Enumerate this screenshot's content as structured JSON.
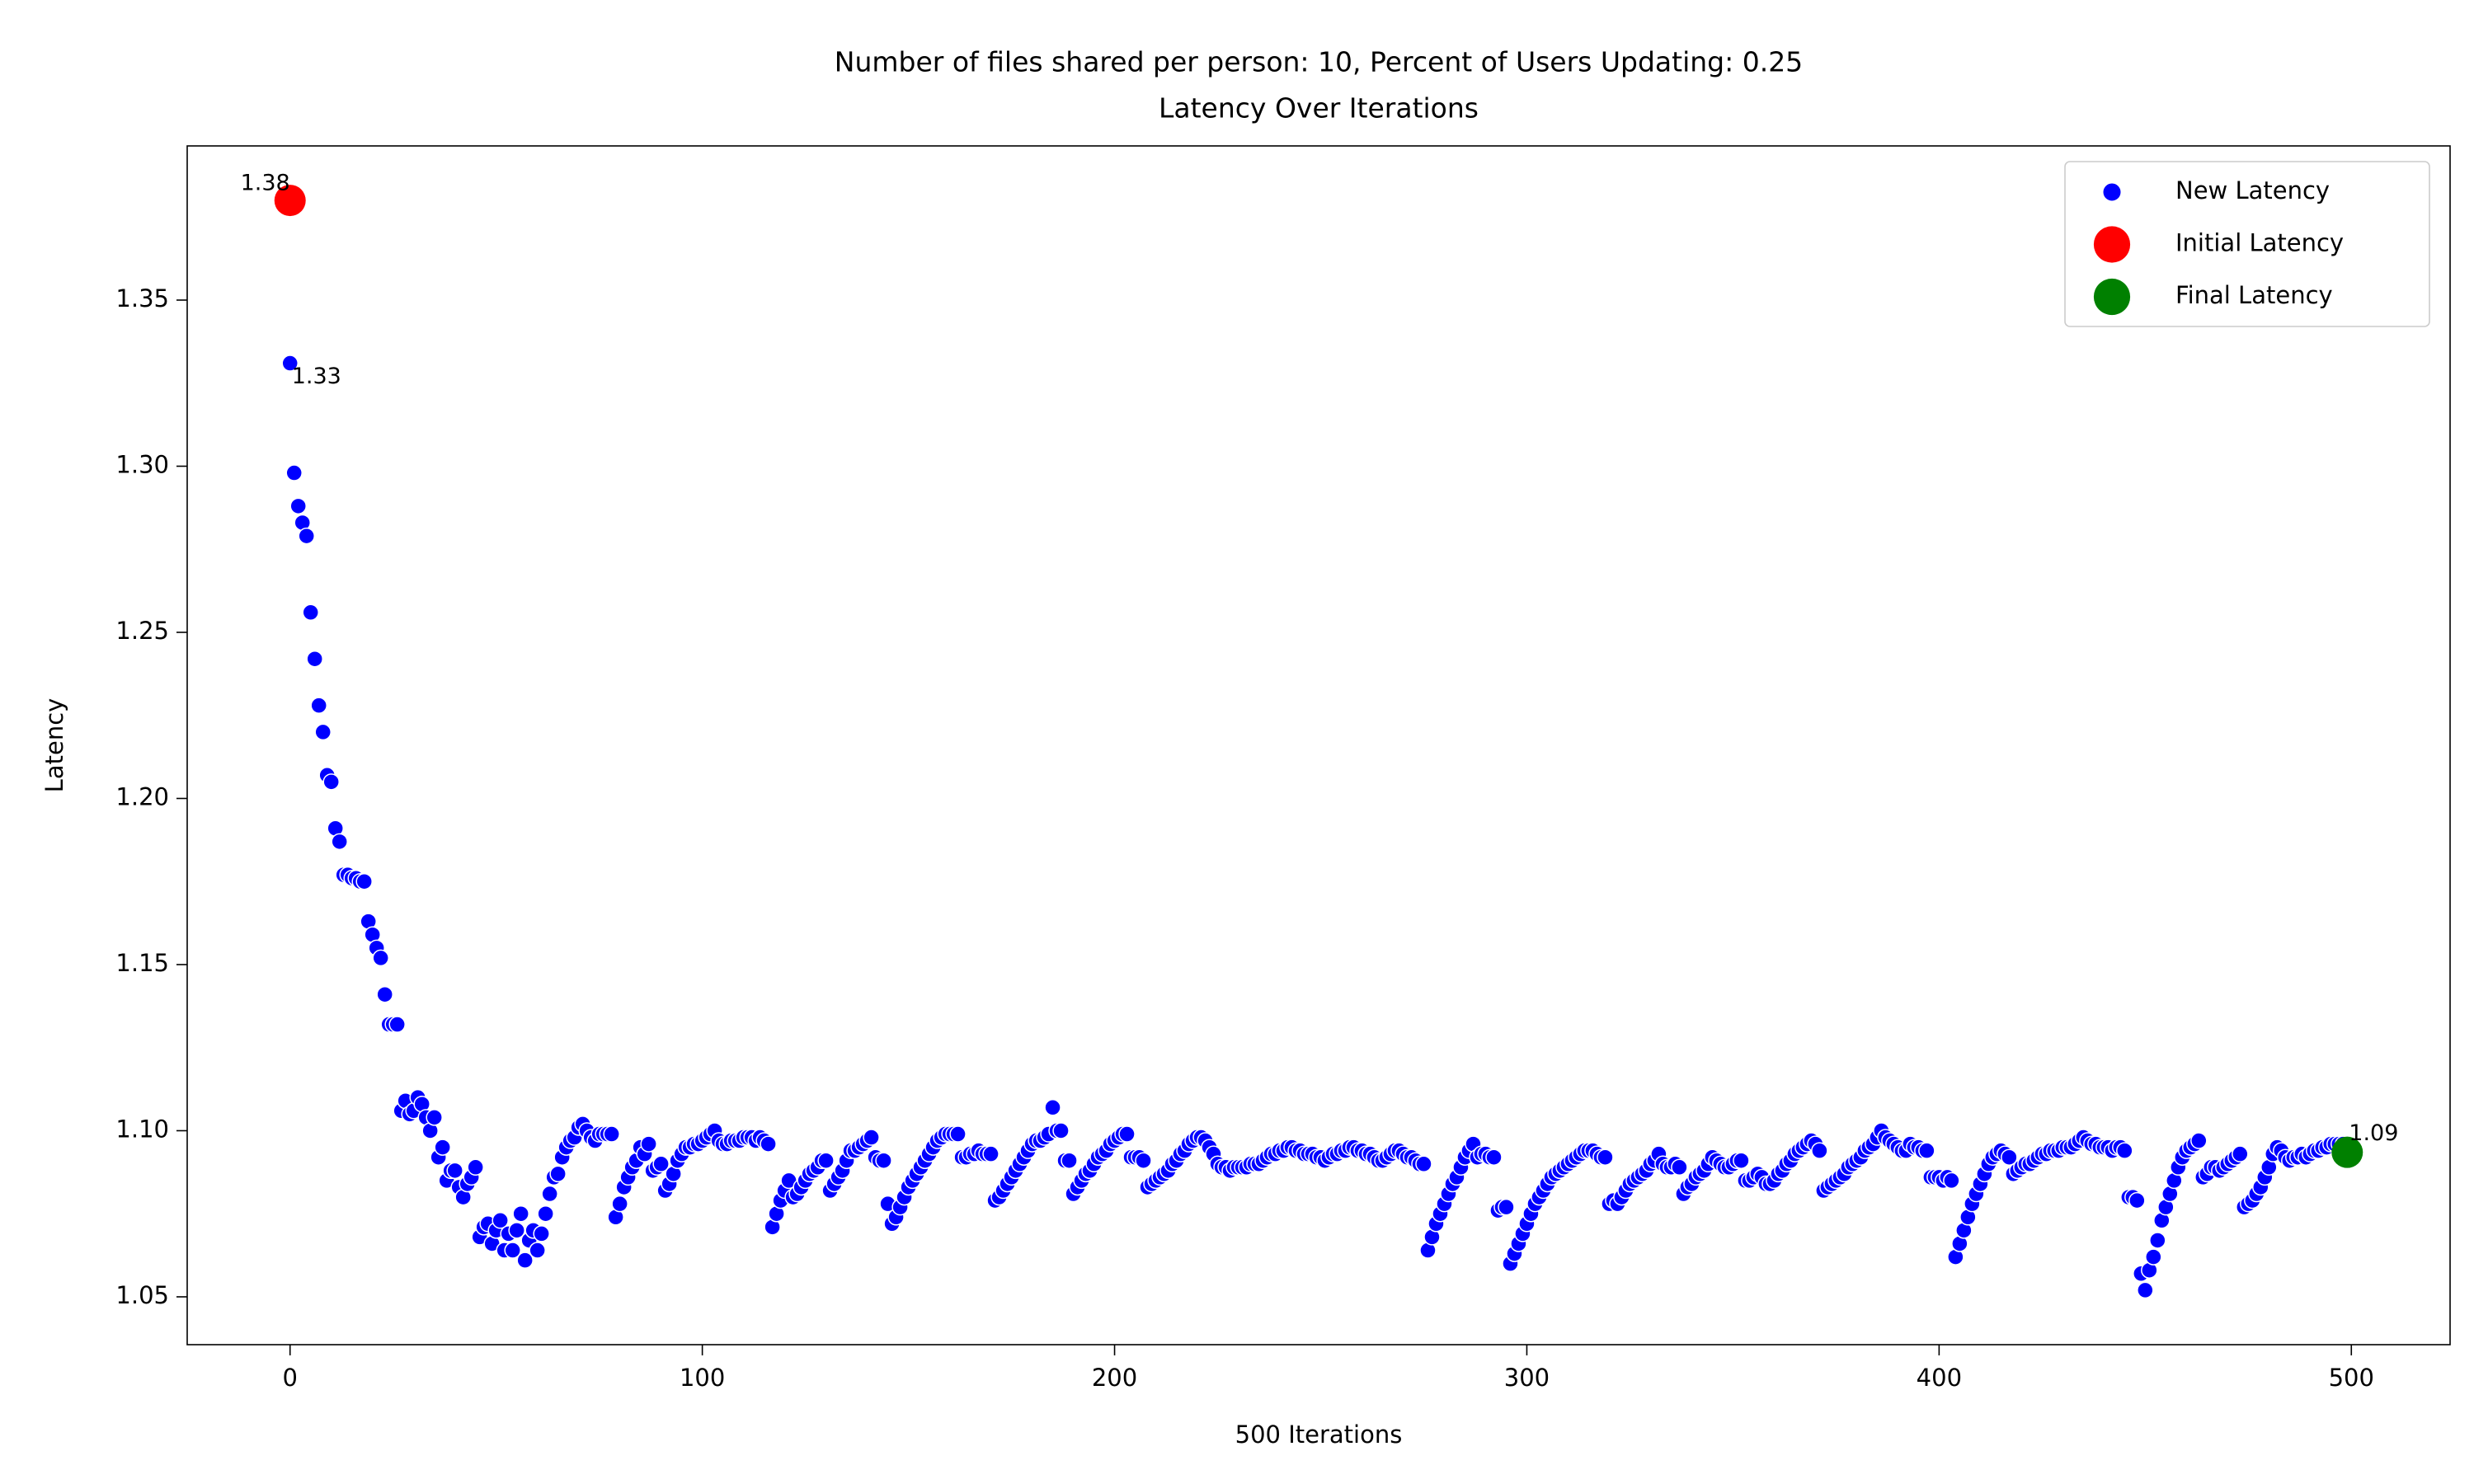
{
  "chart_data": {
    "type": "scatter",
    "title": "Number of files shared per person: 10, Percent of Users Updating: 0.25",
    "subtitle": "Latency Over Iterations",
    "x_label": "500 Iterations",
    "y_label": "Latency",
    "xlim": [
      -24.95,
      523.95
    ],
    "ylim": [
      1.0356,
      1.3964
    ],
    "xticks": [
      0,
      100,
      200,
      300,
      400,
      500
    ],
    "yticks": [
      1.05,
      {
        "value": 1.1,
        "label": "1.10"
      },
      1.15,
      {
        "value": 1.2,
        "label": "1.20"
      },
      1.25,
      {
        "value": 1.3,
        "label": "1.30"
      },
      1.35
    ],
    "grid": false,
    "legend": "upper right",
    "series": [
      {
        "name": "New Latency",
        "color": "blue",
        "x": [
          0,
          1,
          2,
          3,
          4,
          5,
          6,
          7,
          8,
          9,
          10,
          11,
          12,
          13,
          14,
          15,
          16,
          17,
          18,
          19,
          20,
          21,
          22,
          23,
          24,
          25,
          26,
          27,
          28,
          29,
          30,
          31,
          32,
          33,
          34,
          35,
          36,
          37,
          38,
          39,
          40,
          41,
          42,
          43,
          44,
          45,
          46,
          47,
          48,
          49,
          50,
          51,
          52,
          53,
          54,
          55,
          56,
          57,
          58,
          59,
          60,
          61,
          62,
          63,
          64,
          65,
          66,
          67,
          68,
          69,
          70,
          71,
          72,
          73,
          74,
          75,
          76,
          77,
          78,
          79,
          80,
          81,
          82,
          83,
          84,
          85,
          86,
          87,
          88,
          89,
          90,
          91,
          92,
          93,
          94,
          95,
          96,
          97,
          98,
          99,
          100,
          101,
          102,
          103,
          104,
          105,
          106,
          107,
          108,
          109,
          110,
          111,
          112,
          113,
          114,
          115,
          116,
          117,
          118,
          119,
          120,
          121,
          122,
          123,
          124,
          125,
          126,
          127,
          128,
          129,
          130,
          131,
          132,
          133,
          134,
          135,
          136,
          137,
          138,
          139,
          140,
          141,
          142,
          143,
          144,
          145,
          146,
          147,
          148,
          149,
          150,
          151,
          152,
          153,
          154,
          155,
          156,
          157,
          158,
          159,
          160,
          161,
          162,
          163,
          164,
          165,
          166,
          167,
          168,
          169,
          170,
          171,
          172,
          173,
          174,
          175,
          176,
          177,
          178,
          179,
          180,
          181,
          182,
          183,
          184,
          185,
          186,
          187,
          188,
          189,
          190,
          191,
          192,
          193,
          194,
          195,
          196,
          197,
          198,
          199,
          200,
          201,
          202,
          203,
          204,
          205,
          206,
          207,
          208,
          209,
          210,
          211,
          212,
          213,
          214,
          215,
          216,
          217,
          218,
          219,
          220,
          221,
          222,
          223,
          224,
          225,
          226,
          227,
          228,
          229,
          230,
          231,
          232,
          233,
          234,
          235,
          236,
          237,
          238,
          239,
          240,
          241,
          242,
          243,
          244,
          245,
          246,
          247,
          248,
          249,
          250,
          251,
          252,
          253,
          254,
          255,
          256,
          257,
          258,
          259,
          260,
          261,
          262,
          263,
          264,
          265,
          266,
          267,
          268,
          269,
          270,
          271,
          272,
          273,
          274,
          275,
          276,
          277,
          278,
          279,
          280,
          281,
          282,
          283,
          284,
          285,
          286,
          287,
          288,
          289,
          290,
          291,
          292,
          293,
          294,
          295,
          296,
          297,
          298,
          299,
          300,
          301,
          302,
          303,
          304,
          305,
          306,
          307,
          308,
          309,
          310,
          311,
          312,
          313,
          314,
          315,
          316,
          317,
          318,
          319,
          320,
          321,
          322,
          323,
          324,
          325,
          326,
          327,
          328,
          329,
          330,
          331,
          332,
          333,
          334,
          335,
          336,
          337,
          338,
          339,
          340,
          341,
          342,
          343,
          344,
          345,
          346,
          347,
          348,
          349,
          350,
          351,
          352,
          353,
          354,
          355,
          356,
          357,
          358,
          359,
          360,
          361,
          362,
          363,
          364,
          365,
          366,
          367,
          368,
          369,
          370,
          371,
          372,
          373,
          374,
          375,
          376,
          377,
          378,
          379,
          380,
          381,
          382,
          383,
          384,
          385,
          386,
          387,
          388,
          389,
          390,
          391,
          392,
          393,
          394,
          395,
          396,
          397,
          398,
          399,
          400,
          401,
          402,
          403,
          404,
          405,
          406,
          407,
          408,
          409,
          410,
          411,
          412,
          413,
          414,
          415,
          416,
          417,
          418,
          419,
          420,
          421,
          422,
          423,
          424,
          425,
          426,
          427,
          428,
          429,
          430,
          431,
          432,
          433,
          434,
          435,
          436,
          437,
          438,
          439,
          440,
          441,
          442,
          443,
          444,
          445,
          446,
          447,
          448,
          449,
          450,
          451,
          452,
          453,
          454,
          455,
          456,
          457,
          458,
          459,
          460,
          461,
          462,
          463,
          464,
          465,
          466,
          467,
          468,
          469,
          470,
          471,
          472,
          473,
          474,
          475,
          476,
          477,
          478,
          479,
          480,
          481,
          482,
          483,
          484,
          485,
          486,
          487,
          488,
          489,
          490,
          491,
          492,
          493,
          494,
          495,
          496,
          497,
          498
        ],
        "values": [
          1.331,
          1.298,
          1.288,
          1.283,
          1.279,
          1.256,
          1.242,
          1.228,
          1.22,
          1.207,
          1.205,
          1.191,
          1.187,
          1.177,
          1.177,
          1.176,
          1.176,
          1.175,
          1.175,
          1.163,
          1.159,
          1.155,
          1.152,
          1.141,
          1.132,
          1.132,
          1.132,
          1.106,
          1.109,
          1.105,
          1.106,
          1.11,
          1.108,
          1.104,
          1.1,
          1.104,
          1.092,
          1.095,
          1.085,
          1.088,
          1.088,
          1.083,
          1.08,
          1.084,
          1.086,
          1.089,
          1.068,
          1.071,
          1.072,
          1.066,
          1.07,
          1.073,
          1.064,
          1.069,
          1.064,
          1.07,
          1.075,
          1.061,
          1.067,
          1.07,
          1.064,
          1.069,
          1.075,
          1.081,
          1.086,
          1.087,
          1.092,
          1.095,
          1.097,
          1.098,
          1.101,
          1.102,
          1.1,
          1.098,
          1.097,
          1.099,
          1.099,
          1.099,
          1.099,
          1.074,
          1.078,
          1.083,
          1.086,
          1.089,
          1.091,
          1.095,
          1.093,
          1.096,
          1.088,
          1.089,
          1.09,
          1.082,
          1.084,
          1.087,
          1.091,
          1.093,
          1.095,
          1.095,
          1.096,
          1.096,
          1.097,
          1.098,
          1.099,
          1.1,
          1.097,
          1.096,
          1.096,
          1.097,
          1.097,
          1.097,
          1.098,
          1.098,
          1.098,
          1.097,
          1.098,
          1.097,
          1.096,
          1.071,
          1.075,
          1.079,
          1.082,
          1.085,
          1.08,
          1.081,
          1.083,
          1.085,
          1.087,
          1.088,
          1.089,
          1.091,
          1.091,
          1.082,
          1.084,
          1.086,
          1.088,
          1.091,
          1.094,
          1.094,
          1.095,
          1.096,
          1.097,
          1.098,
          1.092,
          1.091,
          1.091,
          1.078,
          1.072,
          1.074,
          1.077,
          1.08,
          1.083,
          1.085,
          1.087,
          1.089,
          1.091,
          1.093,
          1.095,
          1.097,
          1.098,
          1.099,
          1.099,
          1.099,
          1.099,
          1.092,
          1.092,
          1.093,
          1.093,
          1.094,
          1.093,
          1.093,
          1.093,
          1.079,
          1.08,
          1.082,
          1.084,
          1.086,
          1.088,
          1.09,
          1.092,
          1.094,
          1.096,
          1.097,
          1.097,
          1.098,
          1.099,
          1.107,
          1.1,
          1.1,
          1.091,
          1.091,
          1.081,
          1.083,
          1.085,
          1.087,
          1.088,
          1.09,
          1.092,
          1.093,
          1.094,
          1.096,
          1.097,
          1.098,
          1.099,
          1.099,
          1.092,
          1.092,
          1.092,
          1.091,
          1.083,
          1.084,
          1.085,
          1.086,
          1.087,
          1.088,
          1.09,
          1.091,
          1.093,
          1.094,
          1.096,
          1.097,
          1.098,
          1.098,
          1.097,
          1.095,
          1.093,
          1.09,
          1.089,
          1.089,
          1.088,
          1.089,
          1.089,
          1.089,
          1.089,
          1.09,
          1.09,
          1.09,
          1.091,
          1.092,
          1.093,
          1.093,
          1.094,
          1.094,
          1.095,
          1.095,
          1.094,
          1.094,
          1.093,
          1.093,
          1.093,
          1.092,
          1.092,
          1.091,
          1.092,
          1.093,
          1.093,
          1.094,
          1.094,
          1.095,
          1.095,
          1.094,
          1.094,
          1.093,
          1.093,
          1.092,
          1.091,
          1.091,
          1.092,
          1.093,
          1.094,
          1.094,
          1.093,
          1.092,
          1.092,
          1.091,
          1.09,
          1.09,
          1.064,
          1.068,
          1.072,
          1.075,
          1.078,
          1.081,
          1.084,
          1.086,
          1.089,
          1.092,
          1.094,
          1.096,
          1.092,
          1.093,
          1.093,
          1.092,
          1.092,
          1.076,
          1.077,
          1.077,
          1.06,
          1.063,
          1.066,
          1.069,
          1.072,
          1.075,
          1.078,
          1.08,
          1.082,
          1.084,
          1.086,
          1.087,
          1.088,
          1.089,
          1.09,
          1.091,
          1.092,
          1.093,
          1.094,
          1.094,
          1.094,
          1.093,
          1.092,
          1.092,
          1.078,
          1.079,
          1.078,
          1.08,
          1.082,
          1.084,
          1.085,
          1.086,
          1.087,
          1.088,
          1.09,
          1.091,
          1.093,
          1.09,
          1.089,
          1.089,
          1.09,
          1.089,
          1.081,
          1.083,
          1.084,
          1.086,
          1.087,
          1.088,
          1.09,
          1.092,
          1.091,
          1.09,
          1.089,
          1.089,
          1.09,
          1.091,
          1.091,
          1.085,
          1.085,
          1.086,
          1.087,
          1.086,
          1.084,
          1.084,
          1.085,
          1.087,
          1.088,
          1.09,
          1.091,
          1.093,
          1.094,
          1.095,
          1.096,
          1.097,
          1.096,
          1.094,
          1.082,
          1.083,
          1.084,
          1.085,
          1.086,
          1.087,
          1.089,
          1.09,
          1.091,
          1.092,
          1.094,
          1.095,
          1.096,
          1.098,
          1.1,
          1.098,
          1.097,
          1.096,
          1.095,
          1.094,
          1.094,
          1.096,
          1.095,
          1.095,
          1.094,
          1.094,
          1.086,
          1.086,
          1.086,
          1.085,
          1.086,
          1.085,
          1.062,
          1.066,
          1.07,
          1.074,
          1.078,
          1.081,
          1.084,
          1.087,
          1.09,
          1.092,
          1.093,
          1.094,
          1.093,
          1.092,
          1.087,
          1.088,
          1.089,
          1.09,
          1.09,
          1.091,
          1.092,
          1.093,
          1.093,
          1.094,
          1.094,
          1.094,
          1.095,
          1.095,
          1.095,
          1.096,
          1.097,
          1.098,
          1.097,
          1.096,
          1.096,
          1.095,
          1.095,
          1.095,
          1.094,
          1.095,
          1.095,
          1.094,
          1.08,
          1.08,
          1.079,
          1.057,
          1.052,
          1.058,
          1.062,
          1.067,
          1.073,
          1.077,
          1.081,
          1.085,
          1.089,
          1.092,
          1.094,
          1.095,
          1.096,
          1.097,
          1.086,
          1.087,
          1.089,
          1.089,
          1.088,
          1.089,
          1.09,
          1.091,
          1.092,
          1.093,
          1.077,
          1.078,
          1.079,
          1.081,
          1.083,
          1.086,
          1.089,
          1.093,
          1.095,
          1.094,
          1.092,
          1.091,
          1.092,
          1.092,
          1.093,
          1.092,
          1.093,
          1.094,
          1.094,
          1.095,
          1.095,
          1.096,
          1.096,
          1.096,
          1.096
        ]
      },
      {
        "name": "Initial Latency",
        "color": "red",
        "x": [
          0
        ],
        "values": [
          1.38
        ]
      },
      {
        "name": "Final Latency",
        "color": "green",
        "x": [
          499
        ],
        "values": [
          1.0935
        ]
      }
    ],
    "annotations": [
      {
        "text": "1.38",
        "x": 0,
        "y": 1.38,
        "color": "red"
      },
      {
        "text": "1.33",
        "x": 0,
        "y": 1.331,
        "color": "blue"
      },
      {
        "text": "1.09",
        "x": 499,
        "y": 1.0935,
        "color": "green"
      }
    ]
  }
}
